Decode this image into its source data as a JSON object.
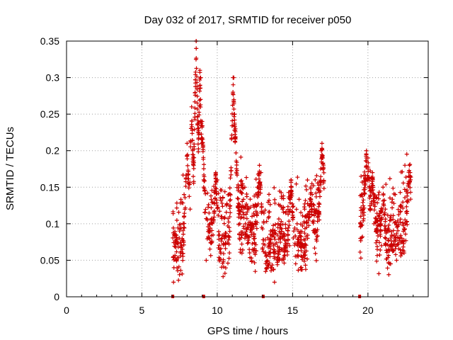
{
  "chart_data": {
    "type": "scatter",
    "title": "Day 032 of 2017, SRMTID for receiver p050",
    "xlabel": "GPS time / hours",
    "ylabel": "SRMTID / TECUs",
    "xlim": [
      0,
      24
    ],
    "ylim": [
      0,
      0.35
    ],
    "xticks": [
      0,
      5,
      10,
      15,
      20
    ],
    "xtick_labels": [
      "0",
      "5",
      "10",
      "15",
      "20"
    ],
    "yticks": [
      0,
      0.05,
      0.1,
      0.15,
      0.2,
      0.25,
      0.3,
      0.35
    ],
    "ytick_labels": [
      "0",
      "0.05",
      "0.1",
      "0.15",
      "0.2",
      "0.25",
      "0.3",
      "0.35"
    ],
    "grid": true,
    "marker": "+",
    "color": "#cc0000",
    "segments": [
      {
        "x0": 7.05,
        "x1": 9.3,
        "peaks": [
          [
            8.6,
            0.35
          ],
          [
            8.85,
            0.31
          ],
          [
            8.3,
            0.26
          ],
          [
            8.0,
            0.21
          ],
          [
            9.0,
            0.24
          ]
        ]
      },
      {
        "x0": 9.3,
        "x1": 13.1,
        "peaks": [
          [
            11.05,
            0.3
          ],
          [
            11.1,
            0.27
          ],
          [
            11.15,
            0.25
          ],
          [
            11.2,
            0.23
          ],
          [
            9.9,
            0.17
          ],
          [
            12.8,
            0.18
          ]
        ]
      },
      {
        "x0": 13.15,
        "x1": 17.1,
        "peaks": [
          [
            16.95,
            0.21
          ],
          [
            17.0,
            0.19
          ],
          [
            14.9,
            0.16
          ],
          [
            16.2,
            0.15
          ]
        ]
      },
      {
        "x0": 19.45,
        "x1": 22.85,
        "peaks": [
          [
            19.9,
            0.2
          ],
          [
            20.0,
            0.19
          ],
          [
            22.75,
            0.18
          ],
          [
            21.0,
            0.15
          ],
          [
            20.3,
            0.17
          ]
        ]
      }
    ],
    "sample_points": [
      [
        7.1,
        0.02
      ],
      [
        7.3,
        0.05
      ],
      [
        7.5,
        0.09
      ],
      [
        7.8,
        0.14
      ],
      [
        8.2,
        0.12
      ],
      [
        8.6,
        0.35
      ],
      [
        8.9,
        0.3
      ],
      [
        9.1,
        0.15
      ],
      [
        9.5,
        0.1
      ],
      [
        10.0,
        0.16
      ],
      [
        10.5,
        0.08
      ],
      [
        11.1,
        0.3
      ],
      [
        11.5,
        0.1
      ],
      [
        12.0,
        0.12
      ],
      [
        12.5,
        0.06
      ],
      [
        12.9,
        0.17
      ],
      [
        13.3,
        0.04
      ],
      [
        13.8,
        0.02
      ],
      [
        14.3,
        0.05
      ],
      [
        14.8,
        0.07
      ],
      [
        15.3,
        0.1
      ],
      [
        15.8,
        0.12
      ],
      [
        16.3,
        0.14
      ],
      [
        16.9,
        0.2
      ],
      [
        19.5,
        0.08
      ],
      [
        19.9,
        0.19
      ],
      [
        20.4,
        0.1
      ],
      [
        20.9,
        0.07
      ],
      [
        21.4,
        0.09
      ],
      [
        21.9,
        0.05
      ],
      [
        22.4,
        0.06
      ],
      [
        22.8,
        0.17
      ]
    ],
    "axis_markers": [
      7.05,
      9.1,
      13.05,
      19.45
    ]
  }
}
